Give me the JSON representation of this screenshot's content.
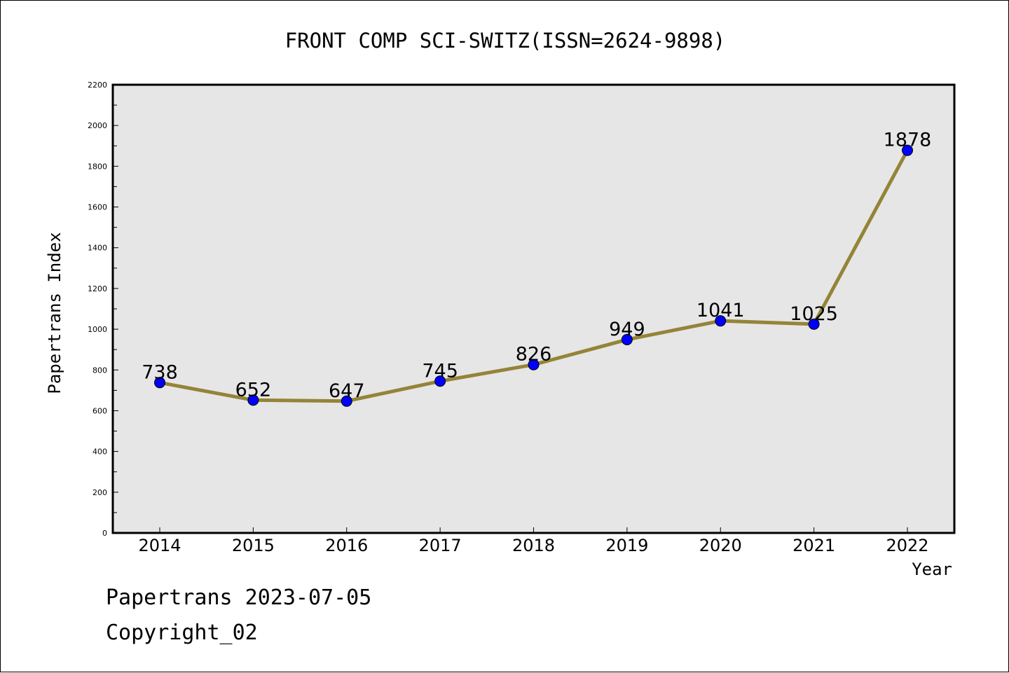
{
  "chart_data": {
    "type": "line",
    "title": "FRONT COMP SCI-SWITZ(ISSN=2624-9898)",
    "xlabel": "Year",
    "ylabel": "Papertrans Index",
    "categories": [
      "2014",
      "2015",
      "2016",
      "2017",
      "2018",
      "2019",
      "2020",
      "2021",
      "2022"
    ],
    "series": [
      {
        "values": [
          738,
          652,
          647,
          745,
          826,
          949,
          1041,
          1025,
          1878
        ]
      }
    ],
    "ylim": [
      0,
      2200
    ],
    "yticks": [
      0,
      200,
      400,
      600,
      800,
      1000,
      1200,
      1400,
      1600,
      1800,
      2000,
      2200
    ],
    "grid": false,
    "legend": "none",
    "line_color": "#948438",
    "marker_color": "#0000ff",
    "plot_background": "#e6e6e6"
  },
  "footer": {
    "date_line": "Papertrans 2023-07-05",
    "copyright": "Copyright_02"
  }
}
